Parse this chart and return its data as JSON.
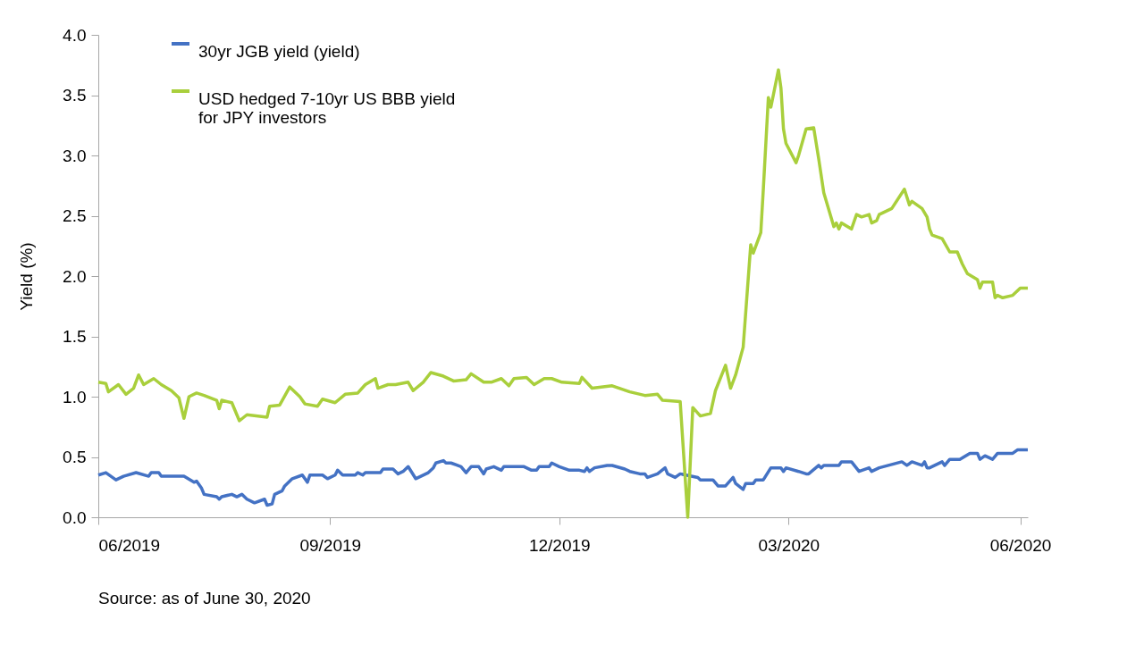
{
  "chart_data": {
    "type": "line",
    "ylabel": "Yield (%)",
    "annotations": [
      "Source: as of June 30, 2020"
    ],
    "xlim": [
      "2019-06-01",
      "2020-06-04"
    ],
    "xticks": [
      {
        "value": "2019-06-01",
        "label": "06/2019"
      },
      {
        "value": "2019-09-01",
        "label": "09/2019"
      },
      {
        "value": "2019-12-01",
        "label": "12/2019"
      },
      {
        "value": "2020-03-01",
        "label": "03/2020"
      },
      {
        "value": "2020-06-01",
        "label": "06/2020"
      }
    ],
    "ylim": [
      0,
      4
    ],
    "yticks": [
      {
        "value": 0,
        "label": "0.0"
      },
      {
        "value": 0.5,
        "label": "0.5"
      },
      {
        "value": 1,
        "label": "1.0"
      },
      {
        "value": 1.5,
        "label": "1.5"
      },
      {
        "value": 2,
        "label": "2.0"
      },
      {
        "value": 2.5,
        "label": "2.5"
      },
      {
        "value": 3,
        "label": "3.0"
      },
      {
        "value": 3.5,
        "label": "3.5"
      },
      {
        "value": 4,
        "label": "4.0"
      }
    ],
    "grid": false,
    "legend": "top left",
    "marker": "none",
    "line_style": "solid",
    "series": [
      {
        "name": "30yr JGB yield (yield)",
        "color": "#4472c4",
        "x": [
          "2019-06-01",
          "2019-06-04",
          "2019-06-08",
          "2019-06-11",
          "2019-06-16",
          "2019-06-21",
          "2019-06-22",
          "2019-06-25",
          "2019-06-26",
          "2019-07-05",
          "2019-07-09",
          "2019-07-10",
          "2019-07-12",
          "2019-07-13",
          "2019-07-18",
          "2019-07-19",
          "2019-07-20",
          "2019-07-24",
          "2019-07-26",
          "2019-07-28",
          "2019-07-30",
          "2019-08-02",
          "2019-08-06",
          "2019-08-07",
          "2019-08-09",
          "2019-08-10",
          "2019-08-13",
          "2019-08-14",
          "2019-08-17",
          "2019-08-21",
          "2019-08-23",
          "2019-08-24",
          "2019-08-29",
          "2019-08-31",
          "2019-09-03",
          "2019-09-04",
          "2019-09-06",
          "2019-09-11",
          "2019-09-12",
          "2019-09-14",
          "2019-09-15",
          "2019-09-21",
          "2019-09-22",
          "2019-09-26",
          "2019-09-28",
          "2019-09-30",
          "2019-10-02",
          "2019-10-05",
          "2019-10-10",
          "2019-10-12",
          "2019-10-13",
          "2019-10-16",
          "2019-10-17",
          "2019-10-19",
          "2019-10-23",
          "2019-10-25",
          "2019-10-27",
          "2019-10-30",
          "2019-11-01",
          "2019-11-02",
          "2019-11-05",
          "2019-11-08",
          "2019-11-09",
          "2019-11-17",
          "2019-11-20",
          "2019-11-22",
          "2019-11-23",
          "2019-11-27",
          "2019-11-28",
          "2019-12-01",
          "2019-12-05",
          "2019-12-09",
          "2019-12-11",
          "2019-12-12",
          "2019-12-13",
          "2019-12-15",
          "2019-12-20",
          "2019-12-22",
          "2019-12-27",
          "2019-12-29",
          "2020-01-02",
          "2020-01-04",
          "2020-01-05",
          "2020-01-09",
          "2020-01-12",
          "2020-01-13",
          "2020-01-16",
          "2020-01-18",
          "2020-01-25",
          "2020-01-26",
          "2020-01-31",
          "2020-02-02",
          "2020-02-05",
          "2020-02-08",
          "2020-02-09",
          "2020-02-12",
          "2020-02-13",
          "2020-02-16",
          "2020-02-17",
          "2020-02-20",
          "2020-02-23",
          "2020-02-27",
          "2020-02-28",
          "2020-02-29",
          "2020-03-05",
          "2020-03-08",
          "2020-03-09",
          "2020-03-13",
          "2020-03-14",
          "2020-03-15",
          "2020-03-21",
          "2020-03-22",
          "2020-03-26",
          "2020-03-29",
          "2020-04-02",
          "2020-04-03",
          "2020-04-06",
          "2020-04-15",
          "2020-04-17",
          "2020-04-19",
          "2020-04-23",
          "2020-04-24",
          "2020-04-25",
          "2020-04-26",
          "2020-05-01",
          "2020-05-02",
          "2020-05-04",
          "2020-05-08",
          "2020-05-12",
          "2020-05-15",
          "2020-05-16",
          "2020-05-18",
          "2020-05-21",
          "2020-05-23",
          "2020-05-29",
          "2020-05-31",
          "2020-06-04"
        ],
        "values": [
          0.35,
          0.37,
          0.31,
          0.34,
          0.37,
          0.34,
          0.37,
          0.37,
          0.34,
          0.34,
          0.29,
          0.3,
          0.24,
          0.19,
          0.17,
          0.15,
          0.17,
          0.19,
          0.17,
          0.19,
          0.15,
          0.12,
          0.15,
          0.1,
          0.11,
          0.19,
          0.22,
          0.26,
          0.32,
          0.35,
          0.29,
          0.35,
          0.35,
          0.32,
          0.35,
          0.39,
          0.35,
          0.35,
          0.37,
          0.35,
          0.37,
          0.37,
          0.4,
          0.4,
          0.36,
          0.38,
          0.42,
          0.32,
          0.37,
          0.41,
          0.45,
          0.47,
          0.45,
          0.45,
          0.42,
          0.37,
          0.42,
          0.42,
          0.36,
          0.4,
          0.42,
          0.39,
          0.42,
          0.42,
          0.39,
          0.39,
          0.42,
          0.42,
          0.45,
          0.42,
          0.39,
          0.39,
          0.38,
          0.41,
          0.38,
          0.41,
          0.43,
          0.43,
          0.4,
          0.38,
          0.36,
          0.36,
          0.33,
          0.36,
          0.41,
          0.36,
          0.33,
          0.36,
          0.33,
          0.31,
          0.31,
          0.26,
          0.26,
          0.33,
          0.28,
          0.23,
          0.28,
          0.28,
          0.31,
          0.31,
          0.41,
          0.41,
          0.38,
          0.41,
          0.38,
          0.36,
          0.36,
          0.43,
          0.41,
          0.43,
          0.43,
          0.46,
          0.46,
          0.38,
          0.41,
          0.38,
          0.41,
          0.46,
          0.43,
          0.46,
          0.43,
          0.46,
          0.41,
          0.41,
          0.46,
          0.43,
          0.48,
          0.48,
          0.53,
          0.53,
          0.48,
          0.51,
          0.48,
          0.53,
          0.53,
          0.56,
          0.56
        ]
      },
      {
        "name": "USD hedged 7-10yr US BBB yield for JPY investors",
        "color": "#a9cf3c",
        "x": [
          "2019-06-01",
          "2019-06-04",
          "2019-06-05",
          "2019-06-09",
          "2019-06-12",
          "2019-06-15",
          "2019-06-17",
          "2019-06-19",
          "2019-06-23",
          "2019-06-26",
          "2019-06-30",
          "2019-07-03",
          "2019-07-05",
          "2019-07-07",
          "2019-07-10",
          "2019-07-13",
          "2019-07-18",
          "2019-07-19",
          "2019-07-20",
          "2019-07-24",
          "2019-07-27",
          "2019-07-30",
          "2019-08-07",
          "2019-08-08",
          "2019-08-12",
          "2019-08-16",
          "2019-08-20",
          "2019-08-22",
          "2019-08-27",
          "2019-08-29",
          "2019-09-03",
          "2019-09-07",
          "2019-09-12",
          "2019-09-15",
          "2019-09-19",
          "2019-09-20",
          "2019-09-24",
          "2019-09-27",
          "2019-10-02",
          "2019-10-04",
          "2019-10-08",
          "2019-10-11",
          "2019-10-16",
          "2019-10-20",
          "2019-10-25",
          "2019-10-27",
          "2019-11-01",
          "2019-11-04",
          "2019-11-08",
          "2019-11-11",
          "2019-11-13",
          "2019-11-18",
          "2019-11-21",
          "2019-11-25",
          "2019-11-28",
          "2019-12-02",
          "2019-12-09",
          "2019-12-10",
          "2019-12-14",
          "2019-12-22",
          "2019-12-29",
          "2020-01-04",
          "2020-01-09",
          "2020-01-11",
          "2020-01-18",
          "2020-01-21",
          "2020-01-23",
          "2020-01-26",
          "2020-01-30",
          "2020-02-01",
          "2020-02-05",
          "2020-02-07",
          "2020-02-09",
          "2020-02-12",
          "2020-02-15",
          "2020-02-16",
          "2020-02-19",
          "2020-02-20",
          "2020-02-22",
          "2020-02-23",
          "2020-02-26",
          "2020-02-27",
          "2020-02-28",
          "2020-02-29",
          "2020-03-04",
          "2020-03-05",
          "2020-03-08",
          "2020-03-11",
          "2020-03-13",
          "2020-03-15",
          "2020-03-19",
          "2020-03-20",
          "2020-03-21",
          "2020-03-22",
          "2020-03-26",
          "2020-03-28",
          "2020-03-30",
          "2020-04-02",
          "2020-04-03",
          "2020-04-05",
          "2020-04-06",
          "2020-04-11",
          "2020-04-16",
          "2020-04-18",
          "2020-04-19",
          "2020-04-23",
          "2020-04-25",
          "2020-04-26",
          "2020-04-27",
          "2020-05-01",
          "2020-05-04",
          "2020-05-07",
          "2020-05-09",
          "2020-05-11",
          "2020-05-15",
          "2020-05-16",
          "2020-05-17",
          "2020-05-21",
          "2020-05-22",
          "2020-05-23",
          "2020-05-25",
          "2020-05-29",
          "2020-06-01",
          "2020-06-04"
        ],
        "values": [
          1.12,
          1.11,
          1.04,
          1.1,
          1.02,
          1.07,
          1.18,
          1.1,
          1.15,
          1.1,
          1.05,
          0.99,
          0.82,
          1.0,
          1.03,
          1.01,
          0.97,
          0.9,
          0.97,
          0.95,
          0.8,
          0.85,
          0.83,
          0.92,
          0.93,
          1.08,
          1.0,
          0.94,
          0.92,
          0.98,
          0.95,
          1.02,
          1.03,
          1.1,
          1.15,
          1.07,
          1.1,
          1.1,
          1.12,
          1.05,
          1.12,
          1.2,
          1.17,
          1.13,
          1.14,
          1.19,
          1.12,
          1.12,
          1.15,
          1.09,
          1.15,
          1.16,
          1.1,
          1.15,
          1.15,
          1.12,
          1.11,
          1.16,
          1.07,
          1.09,
          1.04,
          1.01,
          1.02,
          0.97,
          0.96,
          0.0,
          0.91,
          0.84,
          0.86,
          1.05,
          1.26,
          1.07,
          1.18,
          1.41,
          2.26,
          2.19,
          2.36,
          2.72,
          3.48,
          3.4,
          3.71,
          3.56,
          3.22,
          3.1,
          2.94,
          3.0,
          3.22,
          3.23,
          2.97,
          2.69,
          2.41,
          2.44,
          2.39,
          2.44,
          2.39,
          2.51,
          2.49,
          2.51,
          2.44,
          2.46,
          2.51,
          2.56,
          2.72,
          2.59,
          2.62,
          2.56,
          2.49,
          2.39,
          2.34,
          2.31,
          2.2,
          2.2,
          2.1,
          2.02,
          1.97,
          1.9,
          1.95,
          1.95,
          1.82,
          1.84,
          1.82,
          1.84,
          1.9,
          1.9
        ]
      }
    ]
  }
}
